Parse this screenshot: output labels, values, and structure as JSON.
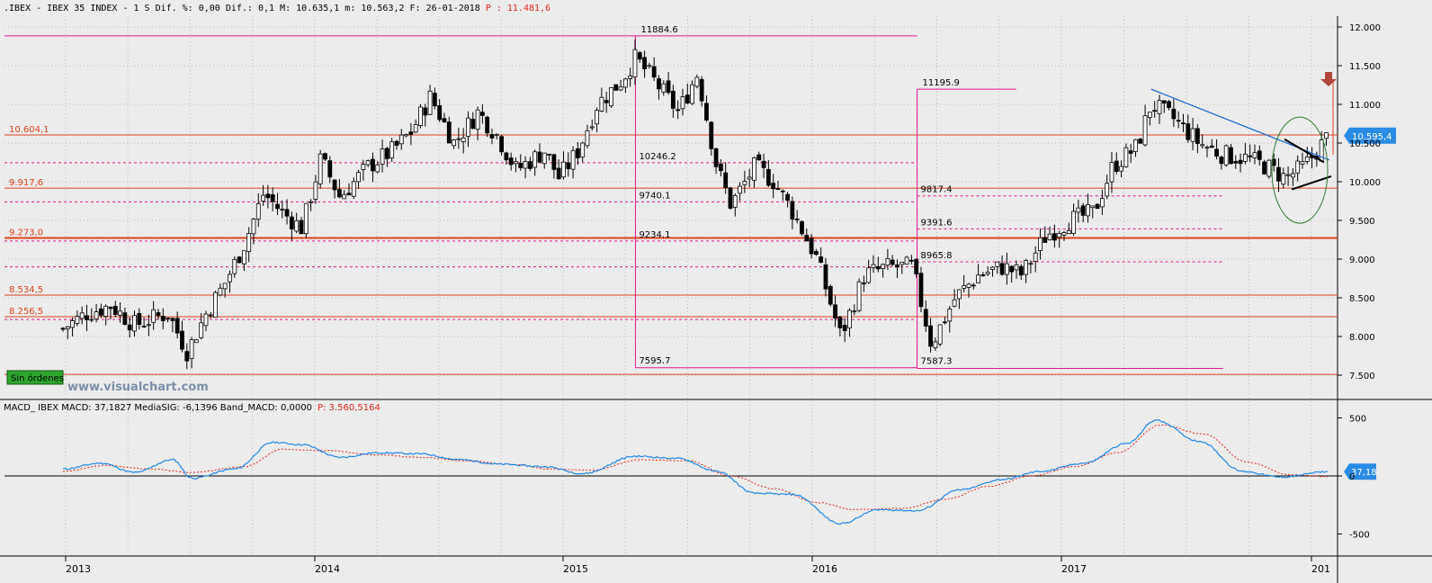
{
  "header": {
    "text": ".IBEX - IBEX 35 INDEX -  1 S Dif. %: 0,00 Dif.: 0,1 M: 10.635,1 m: 10.563,2 F: 26-01-2018",
    "highlight": "P : 11.481,6"
  },
  "watermark": "www.visualchart.com",
  "orders_badge": "Sin órdenes",
  "last_price_label": "10.595,4",
  "macd_header": {
    "text": "MACD_ IBEX MACD: 37,1827 MediaSIG: -6,1396 Band_MACD: 0,0000",
    "highlight": "P: 3.560,5164"
  },
  "macd_value_label": "37,18",
  "colors": {
    "background": "#ececec",
    "levels": "#e0411d",
    "ranges": "#e0168c",
    "trendline": "#1f6fd0",
    "macd": "#1f88e6",
    "signal": "#e3261c",
    "price_tag": "#2a8be4",
    "ellipse": "#2d7a2d",
    "arrow": "#b1453a",
    "badge": "#2ea62e"
  },
  "chart_data": [
    {
      "type": "candlestick",
      "title": "IBEX 35 INDEX",
      "interval": "1 S",
      "ylim": [
        7200,
        12200
      ],
      "y_ticks": [
        12000,
        11500,
        11000,
        10500,
        10000,
        9500,
        9000,
        8500,
        8000,
        7500
      ],
      "y_tick_labels": [
        "12.000",
        "11.500",
        "11.000",
        "10.500",
        "10.000",
        "9.500",
        "9.000",
        "8.500",
        "8.000",
        "7.500"
      ],
      "x_tick_labels": [
        "2013",
        "2014",
        "2015",
        "2016",
        "2017",
        "201"
      ],
      "close_path": [
        [
          "2012-12-28",
          8100
        ],
        [
          "2013-02-01",
          8300
        ],
        [
          "2013-03-08",
          8400
        ],
        [
          "2013-04-12",
          8150
        ],
        [
          "2013-05-31",
          8300
        ],
        [
          "2013-06-28",
          7800
        ],
        [
          "2013-07-26",
          8300
        ],
        [
          "2013-08-23",
          8700
        ],
        [
          "2013-09-20",
          9200
        ],
        [
          "2013-10-18",
          9850
        ],
        [
          "2013-11-15",
          9600
        ],
        [
          "2013-12-13",
          9400
        ],
        [
          "2014-01-10",
          10300
        ],
        [
          "2014-02-07",
          9800
        ],
        [
          "2014-03-21",
          10200
        ],
        [
          "2014-04-25",
          10400
        ],
        [
          "2014-05-23",
          10650
        ],
        [
          "2014-06-20",
          11100
        ],
        [
          "2014-07-25",
          10500
        ],
        [
          "2014-08-29",
          10900
        ],
        [
          "2014-09-26",
          10600
        ],
        [
          "2014-10-24",
          10150
        ],
        [
          "2014-12-05",
          10400
        ],
        [
          "2014-12-26",
          10050
        ],
        [
          "2015-01-23",
          10400
        ],
        [
          "2015-02-20",
          11000
        ],
        [
          "2015-03-27",
          11300
        ],
        [
          "2015-04-17",
          11600
        ],
        [
          "2015-05-15",
          11300
        ],
        [
          "2015-06-19",
          10900
        ],
        [
          "2015-07-17",
          11400
        ],
        [
          "2015-08-14",
          10200
        ],
        [
          "2015-09-04",
          9700
        ],
        [
          "2015-10-09",
          10200
        ],
        [
          "2015-11-06",
          10000
        ],
        [
          "2015-12-04",
          9600
        ],
        [
          "2016-01-08",
          9000
        ],
        [
          "2016-02-12",
          8000
        ],
        [
          "2016-03-18",
          8800
        ],
        [
          "2016-04-22",
          8900
        ],
        [
          "2016-05-27",
          8900
        ],
        [
          "2016-06-24",
          7900
        ],
        [
          "2016-07-29",
          8500
        ],
        [
          "2016-09-02",
          8800
        ],
        [
          "2016-10-07",
          8900
        ],
        [
          "2016-11-04",
          8800
        ],
        [
          "2016-12-09",
          9300
        ],
        [
          "2017-01-13",
          9500
        ],
        [
          "2017-02-17",
          9600
        ],
        [
          "2017-03-17",
          10200
        ],
        [
          "2017-04-21",
          10450
        ],
        [
          "2017-05-12",
          11000
        ],
        [
          "2017-06-16",
          10800
        ],
        [
          "2017-07-21",
          10500
        ],
        [
          "2017-08-25",
          10350
        ],
        [
          "2017-09-29",
          10300
        ],
        [
          "2017-10-27",
          10200
        ],
        [
          "2017-11-24",
          10050
        ],
        [
          "2017-12-22",
          10200
        ],
        [
          "2018-01-26",
          10595
        ]
      ],
      "horizontal_levels": [
        {
          "value": 10604.1,
          "label": "10.604,1"
        },
        {
          "value": 9917.6,
          "label": "9.917,6"
        },
        {
          "value": 9273.0,
          "label": "9.273,0"
        },
        {
          "value": 8534.5,
          "label": "8.534,5"
        },
        {
          "value": 8256.5,
          "label": "8.256,5"
        },
        {
          "value": 7510,
          "label": ""
        }
      ],
      "ranges": [
        {
          "high": 11884.6,
          "high_label": "11884.6",
          "low": 7595.7,
          "low_label": "7595.7",
          "x_from": "2015-04-17",
          "x_to": "2016-06-03",
          "retracements": [
            {
              "value": 10246.2,
              "label": "10246.2"
            },
            {
              "value": 9740.1,
              "label": "9740.1"
            },
            {
              "value": 9234.1,
              "label": "9234.1"
            },
            {
              "value": 8900,
              "label": ""
            },
            {
              "value": 8220,
              "label": ""
            }
          ]
        },
        {
          "high": 11195.9,
          "high_label": "11195.9",
          "low": 7587.3,
          "low_label": "7587.3",
          "x_from": "2016-06-03",
          "x_to": "2017-08-25",
          "retracements": [
            {
              "value": 9817.4,
              "label": "9817.4"
            },
            {
              "value": 9391.6,
              "label": "9391.6"
            },
            {
              "value": 8965.8,
              "label": "8965.8"
            }
          ]
        }
      ],
      "last_price": 10595.4
    },
    {
      "type": "line",
      "title": "MACD_ IBEX",
      "ylim": [
        -700,
        600
      ],
      "y_ticks": [
        500,
        0,
        -500
      ],
      "y_tick_labels": [
        "500",
        "0",
        "-500"
      ],
      "series": [
        {
          "name": "MACD",
          "points": [
            [
              "2012-12-28",
              60
            ],
            [
              "2013-02-22",
              110
            ],
            [
              "2013-04-12",
              30
            ],
            [
              "2013-06-07",
              140
            ],
            [
              "2013-07-05",
              -20
            ],
            [
              "2013-09-06",
              60
            ],
            [
              "2013-11-01",
              290
            ],
            [
              "2013-12-13",
              270
            ],
            [
              "2014-02-07",
              160
            ],
            [
              "2014-04-04",
              200
            ],
            [
              "2014-06-06",
              190
            ],
            [
              "2014-08-01",
              140
            ],
            [
              "2014-10-03",
              100
            ],
            [
              "2014-12-05",
              80
            ],
            [
              "2015-01-30",
              20
            ],
            [
              "2015-04-17",
              170
            ],
            [
              "2015-06-19",
              150
            ],
            [
              "2015-08-14",
              40
            ],
            [
              "2015-10-09",
              -150
            ],
            [
              "2015-12-04",
              -160
            ],
            [
              "2016-02-12",
              -410
            ],
            [
              "2016-04-08",
              -290
            ],
            [
              "2016-06-03",
              -300
            ],
            [
              "2016-08-05",
              -120
            ],
            [
              "2016-10-07",
              -30
            ],
            [
              "2016-12-02",
              40
            ],
            [
              "2017-02-03",
              110
            ],
            [
              "2017-04-07",
              280
            ],
            [
              "2017-05-19",
              480
            ],
            [
              "2017-07-21",
              300
            ],
            [
              "2017-09-22",
              40
            ],
            [
              "2017-11-17",
              -10
            ],
            [
              "2018-01-26",
              37.18
            ]
          ]
        },
        {
          "name": "MediaSIG",
          "points": [
            [
              "2012-12-28",
              40
            ],
            [
              "2013-03-01",
              90
            ],
            [
              "2013-05-03",
              60
            ],
            [
              "2013-07-05",
              30
            ],
            [
              "2013-09-20",
              80
            ],
            [
              "2013-11-15",
              230
            ],
            [
              "2014-01-17",
              220
            ],
            [
              "2014-04-04",
              180
            ],
            [
              "2014-06-06",
              160
            ],
            [
              "2014-08-15",
              130
            ],
            [
              "2014-10-17",
              100
            ],
            [
              "2014-12-12",
              60
            ],
            [
              "2015-02-13",
              50
            ],
            [
              "2015-04-24",
              140
            ],
            [
              "2015-07-03",
              130
            ],
            [
              "2015-09-04",
              0
            ],
            [
              "2015-11-06",
              -110
            ],
            [
              "2016-01-08",
              -230
            ],
            [
              "2016-03-04",
              -290
            ],
            [
              "2016-05-13",
              -280
            ],
            [
              "2016-07-15",
              -200
            ],
            [
              "2016-09-16",
              -90
            ],
            [
              "2016-11-18",
              0
            ],
            [
              "2017-01-20",
              80
            ],
            [
              "2017-03-24",
              200
            ],
            [
              "2017-05-26",
              440
            ],
            [
              "2017-07-28",
              360
            ],
            [
              "2017-09-29",
              120
            ],
            [
              "2017-12-01",
              10
            ],
            [
              "2018-01-26",
              -6.14
            ]
          ]
        }
      ]
    }
  ]
}
